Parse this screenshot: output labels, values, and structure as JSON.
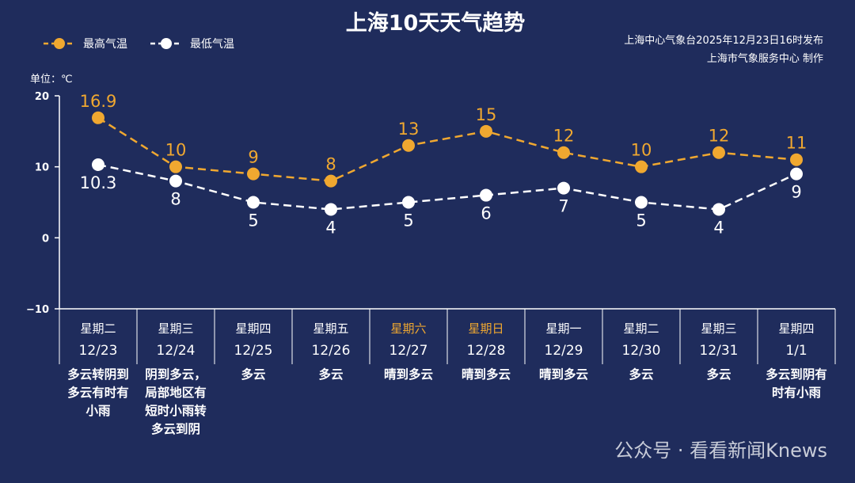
{
  "chart_data": {
    "type": "line",
    "title": "上海10天天气趋势",
    "source": [
      "上海中心气象台2025年12月23日16时发布",
      "上海市气象服务中心  制作"
    ],
    "unit_label": "单位：℃",
    "watermark": "公众号 · 看看新闻Knews",
    "categories": [
      "12/23",
      "12/24",
      "12/25",
      "12/26",
      "12/27",
      "12/28",
      "12/29",
      "12/30",
      "12/31",
      "1/1"
    ],
    "weekdays": [
      {
        "label": "星期二",
        "color": "#ffffff"
      },
      {
        "label": "星期三",
        "color": "#ffffff"
      },
      {
        "label": "星期四",
        "color": "#ffffff"
      },
      {
        "label": "星期五",
        "color": "#ffffff"
      },
      {
        "label": "星期六",
        "color": "#f0a830"
      },
      {
        "label": "星期日",
        "color": "#f0a830"
      },
      {
        "label": "星期一",
        "color": "#ffffff"
      },
      {
        "label": "星期二",
        "color": "#ffffff"
      },
      {
        "label": "星期三",
        "color": "#ffffff"
      },
      {
        "label": "星期四",
        "color": "#ffffff"
      }
    ],
    "weather": [
      "多云转阴到多云有时有小雨",
      "阴到多云，局部地区有短时小雨转多云到阴",
      "多云",
      "多云",
      "晴到多云",
      "晴到多云",
      "晴到多云",
      "多云",
      "多云",
      "多云到阴有时有小雨"
    ],
    "series": [
      {
        "name": "最高气温",
        "color": "#f0a830",
        "values": [
          16.9,
          10,
          9,
          8,
          13,
          15,
          12,
          10,
          12,
          11
        ]
      },
      {
        "name": "最低气温",
        "color": "#ffffff",
        "values": [
          10.3,
          8,
          5,
          4,
          5,
          6,
          7,
          5,
          4,
          9
        ]
      }
    ],
    "ylim": [
      -10,
      20
    ],
    "yticks": [
      {
        "value": -10,
        "label": "−10"
      },
      0,
      10,
      20
    ]
  }
}
